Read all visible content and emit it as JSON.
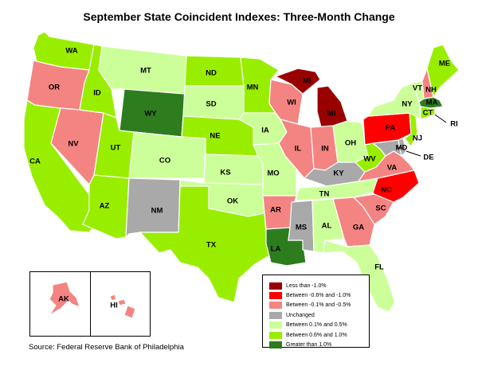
{
  "title": "September State Coincident Indexes: Three-Month Change",
  "source": "Source: Federal Reserve Bank of Philadelphia",
  "colors": {
    "less_than_neg1": "#990000",
    "neg06_to_neg1": "#ff0000",
    "neg01_to_neg05": "#f48482",
    "unchanged": "#a9a9a9",
    "pos01_to_pos05": "#ccff99",
    "pos06_to_pos1": "#99ee00",
    "greater_than_1": "#2d7d1e"
  },
  "legend": [
    {
      "label": "Less than -1.0%",
      "category": "less_than_neg1"
    },
    {
      "label": "Between -0.6% and -1.0%",
      "category": "neg06_to_neg1"
    },
    {
      "label": "Between -0.1% and -0.5%",
      "category": "neg01_to_neg05"
    },
    {
      "label": "Unchanged",
      "category": "unchanged"
    },
    {
      "label": "Between 0.1% and 0.5%",
      "category": "pos01_to_pos05"
    },
    {
      "label": "Between 0.6% and 1.0%",
      "category": "pos06_to_pos1"
    },
    {
      "label": "Greater than 1.0%",
      "category": "greater_than_1"
    }
  ],
  "states": {
    "WA": "pos06_to_pos1",
    "OR": "neg01_to_neg05",
    "CA": "pos06_to_pos1",
    "NV": "neg01_to_neg05",
    "ID": "pos06_to_pos1",
    "MT": "pos01_to_pos05",
    "WY": "greater_than_1",
    "UT": "pos06_to_pos1",
    "AZ": "pos06_to_pos1",
    "CO": "pos01_to_pos05",
    "NM": "unchanged",
    "ND": "pos06_to_pos1",
    "SD": "pos01_to_pos05",
    "NE": "pos06_to_pos1",
    "KS": "pos01_to_pos05",
    "OK": "pos01_to_pos05",
    "TX": "pos06_to_pos1",
    "MN": "pos06_to_pos1",
    "IA": "pos01_to_pos05",
    "MO": "pos01_to_pos05",
    "AR": "neg01_to_neg05",
    "LA": "greater_than_1",
    "WI": "neg01_to_neg05",
    "IL": "neg01_to_neg05",
    "MI": "less_than_neg1",
    "IN": "neg01_to_neg05",
    "OH": "pos01_to_pos05",
    "KY": "unchanged",
    "TN": "pos01_to_pos05",
    "MS": "unchanged",
    "AL": "pos01_to_pos05",
    "GA": "neg01_to_neg05",
    "FL": "pos01_to_pos05",
    "SC": "neg01_to_neg05",
    "NC": "neg06_to_neg1",
    "VA": "neg01_to_neg05",
    "WV": "pos06_to_pos1",
    "MD": "unchanged",
    "DE": "unchanged",
    "PA": "neg06_to_neg1",
    "NJ": "pos06_to_pos1",
    "NY": "pos01_to_pos05",
    "CT": "pos06_to_pos1",
    "RI": "pos06_to_pos1",
    "MA": "greater_than_1",
    "VT": "pos01_to_pos05",
    "NH": "neg01_to_neg05",
    "ME": "pos06_to_pos1",
    "AK": "neg01_to_neg05",
    "HI": "neg01_to_neg05"
  }
}
